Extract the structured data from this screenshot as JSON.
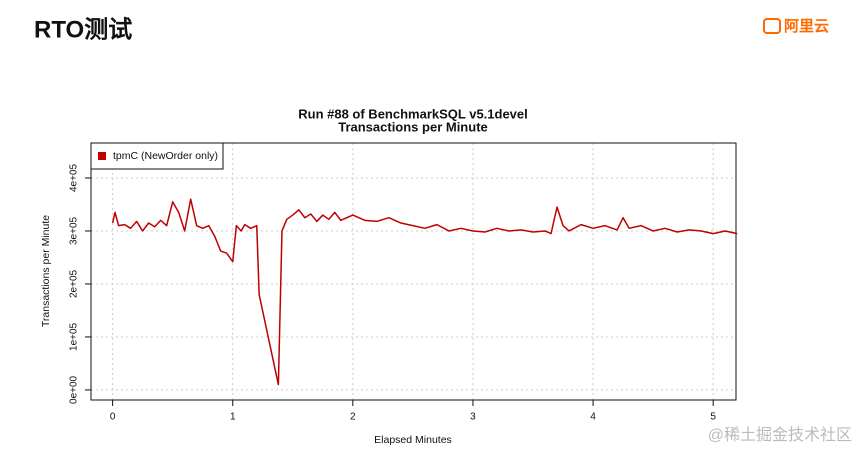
{
  "slide": {
    "title": "RTO测试",
    "logo": "阿里云",
    "watermark": "@稀土掘金技术社区"
  },
  "chart_data": {
    "type": "line",
    "title": "Run #88 of BenchmarkSQL v5.1devel",
    "subtitle": "Transactions per Minute",
    "x_label": "Elapsed Minutes",
    "y_label": "Transactions per Minute",
    "xlim": [
      -0.18,
      5.19
    ],
    "ylim": [
      -19000,
      466000
    ],
    "xticks": [
      0,
      1,
      2,
      3,
      4,
      5
    ],
    "yticks": [
      {
        "value": 0,
        "label": "0e+00"
      },
      {
        "value": 100000,
        "label": "1e+05"
      },
      {
        "value": 200000,
        "label": "2e+05"
      },
      {
        "value": 300000,
        "label": "3e+05"
      },
      {
        "value": 400000,
        "label": "4e+05"
      }
    ],
    "grid": true,
    "legend": "top-left",
    "x": [
      0,
      0.02,
      0.05,
      0.1,
      0.15,
      0.2,
      0.25,
      0.3,
      0.35,
      0.4,
      0.45,
      0.5,
      0.55,
      0.6,
      0.65,
      0.7,
      0.75,
      0.8,
      0.85,
      0.9,
      0.95,
      1.0,
      1.03,
      1.07,
      1.1,
      1.15,
      1.2,
      1.22,
      1.38,
      1.41,
      1.45,
      1.5,
      1.55,
      1.6,
      1.65,
      1.7,
      1.75,
      1.8,
      1.85,
      1.9,
      1.95,
      2.0,
      2.1,
      2.2,
      2.3,
      2.4,
      2.5,
      2.6,
      2.7,
      2.8,
      2.9,
      3.0,
      3.1,
      3.2,
      3.3,
      3.4,
      3.5,
      3.6,
      3.65,
      3.7,
      3.75,
      3.8,
      3.9,
      4.0,
      4.1,
      4.2,
      4.25,
      4.3,
      4.4,
      4.5,
      4.6,
      4.7,
      4.8,
      4.9,
      5.0,
      5.1,
      5.2
    ],
    "series": [
      {
        "name": "tpmC (NewOrder only)",
        "color": "#c00000",
        "values": [
          315000,
          335000,
          310000,
          312000,
          305000,
          318000,
          300000,
          315000,
          308000,
          320000,
          310000,
          355000,
          335000,
          300000,
          360000,
          310000,
          305000,
          310000,
          290000,
          262000,
          258000,
          242000,
          310000,
          300000,
          312000,
          305000,
          310000,
          180000,
          10000,
          300000,
          322000,
          330000,
          340000,
          325000,
          332000,
          318000,
          330000,
          322000,
          335000,
          320000,
          325000,
          330000,
          320000,
          318000,
          325000,
          315000,
          310000,
          305000,
          312000,
          300000,
          305000,
          300000,
          298000,
          305000,
          300000,
          302000,
          298000,
          300000,
          295000,
          345000,
          310000,
          300000,
          312000,
          305000,
          310000,
          302000,
          325000,
          305000,
          310000,
          300000,
          305000,
          298000,
          302000,
          300000,
          295000,
          300000,
          295000
        ]
      }
    ]
  }
}
